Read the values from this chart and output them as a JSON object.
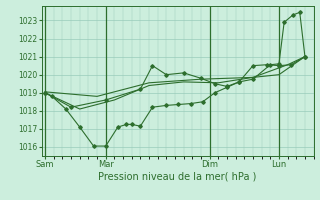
{
  "bg_color": "#cceedd",
  "line_color": "#2d6e2d",
  "grid_color": "#99ccbb",
  "xlabel": "Pression niveau de la mer( hPa )",
  "ylim": [
    1015.5,
    1023.8
  ],
  "yticks": [
    1016,
    1017,
    1018,
    1019,
    1020,
    1021,
    1022,
    1023
  ],
  "day_labels": [
    "Sam",
    "Mar",
    "Dim",
    "Lun"
  ],
  "day_positions": [
    0,
    3.5,
    9.5,
    13.5
  ],
  "vline_positions": [
    0,
    3.5,
    9.5,
    13.5
  ],
  "series1_jagged": {
    "x": [
      0,
      0.4,
      1.2,
      2.0,
      2.8,
      3.5,
      4.2,
      4.7,
      5.0,
      5.5,
      6.2,
      7.0,
      7.7,
      8.4,
      9.1,
      9.8,
      10.5,
      11.2,
      12.0,
      12.8,
      13.5,
      14.2,
      15.0
    ],
    "y": [
      1019.0,
      1018.8,
      1018.1,
      1017.1,
      1016.05,
      1016.05,
      1017.1,
      1017.25,
      1017.25,
      1017.15,
      1018.2,
      1018.3,
      1018.35,
      1018.4,
      1018.5,
      1019.0,
      1019.3,
      1019.6,
      1020.5,
      1020.55,
      1020.5,
      1020.55,
      1021.0
    ]
  },
  "series2_smooth": {
    "x": [
      0,
      2.0,
      4.0,
      6.0,
      8.0,
      10.0,
      12.0,
      14.0,
      15.0
    ],
    "y": [
      1019.0,
      1018.1,
      1018.6,
      1019.4,
      1019.6,
      1019.55,
      1019.85,
      1020.55,
      1021.0
    ]
  },
  "series3_spike": {
    "x": [
      0,
      1.5,
      3.5,
      5.5,
      6.2,
      7.0,
      8.0,
      9.0,
      9.8,
      10.5,
      11.2,
      12.0,
      13.0,
      13.5,
      13.8,
      14.3,
      14.7,
      15.0
    ],
    "y": [
      1019.0,
      1018.2,
      1018.6,
      1019.2,
      1020.5,
      1020.0,
      1020.1,
      1019.8,
      1019.5,
      1019.35,
      1019.6,
      1019.75,
      1020.55,
      1020.6,
      1022.9,
      1023.3,
      1023.45,
      1021.0
    ]
  },
  "series4_trend": {
    "x": [
      0,
      3.0,
      6.0,
      9.0,
      12.0,
      13.5,
      15.0
    ],
    "y": [
      1019.05,
      1018.8,
      1019.55,
      1019.75,
      1019.85,
      1020.0,
      1021.0
    ]
  },
  "xlim": [
    -0.2,
    15.5
  ]
}
